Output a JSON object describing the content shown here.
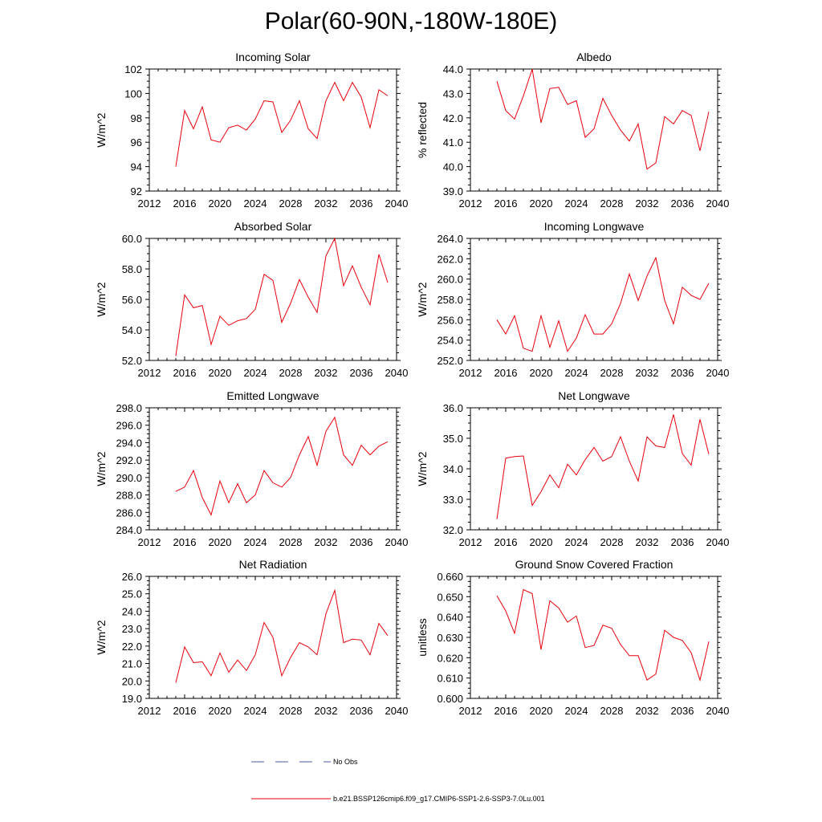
{
  "page_title": "Polar(60-90N,-180W-180E)",
  "legend": {
    "obs_label": "No Obs",
    "model_label": "b.e21.BSSP126cmip6.f09_g17.CMIP6-SSP1-2.6-SSP3-7.0Lu.001",
    "obs_color": "#4a5aa8",
    "model_color": "#e8000b"
  },
  "chart_data": [
    {
      "type": "line",
      "title": "Incoming Solar",
      "ylabel": "W/m^2",
      "xlim": [
        2012,
        2040
      ],
      "xticks": [
        "2012",
        "2016",
        "2020",
        "2024",
        "2028",
        "2032",
        "2036",
        "2040"
      ],
      "ylim": [
        92,
        102
      ],
      "yticks": [
        "92",
        "94",
        "96",
        "98",
        "100",
        "102"
      ],
      "x": [
        2015,
        2016,
        2017,
        2018,
        2019,
        2020,
        2021,
        2022,
        2023,
        2024,
        2025,
        2026,
        2027,
        2028,
        2029,
        2030,
        2031,
        2032,
        2033,
        2034,
        2035,
        2036,
        2037,
        2038,
        2039
      ],
      "series": [
        {
          "values": [
            94.0,
            98.6,
            97.1,
            98.9,
            96.2,
            96.0,
            97.2,
            97.4,
            97.0,
            97.9,
            99.4,
            99.3,
            96.8,
            97.8,
            99.4,
            97.1,
            96.3,
            99.4,
            100.9,
            99.4,
            100.9,
            99.7,
            97.2,
            100.3,
            99.8
          ]
        }
      ]
    },
    {
      "type": "line",
      "title": "Albedo",
      "ylabel": "% reflected",
      "xlim": [
        2012,
        2040
      ],
      "xticks": [
        "2012",
        "2016",
        "2020",
        "2024",
        "2028",
        "2032",
        "2036",
        "2040"
      ],
      "ylim": [
        39,
        44
      ],
      "yticks": [
        "39.0",
        "40.0",
        "41.0",
        "42.0",
        "43.0",
        "44.0"
      ],
      "x": [
        2015,
        2016,
        2017,
        2018,
        2019,
        2020,
        2021,
        2022,
        2023,
        2024,
        2025,
        2026,
        2027,
        2028,
        2029,
        2030,
        2031,
        2032,
        2033,
        2034,
        2035,
        2036,
        2037,
        2038,
        2039
      ],
      "series": [
        {
          "values": [
            43.5,
            42.3,
            41.95,
            42.9,
            44.0,
            41.8,
            43.2,
            43.25,
            42.55,
            42.7,
            41.2,
            41.55,
            42.8,
            42.1,
            41.5,
            41.05,
            41.75,
            39.9,
            40.15,
            42.05,
            41.75,
            42.3,
            42.1,
            40.65,
            42.25
          ]
        }
      ]
    },
    {
      "type": "line",
      "title": "Absorbed Solar",
      "ylabel": "W/m^2",
      "xlim": [
        2012,
        2040
      ],
      "xticks": [
        "2012",
        "2016",
        "2020",
        "2024",
        "2028",
        "2032",
        "2036",
        "2040"
      ],
      "ylim": [
        52,
        60
      ],
      "yticks": [
        "52.0",
        "54.0",
        "56.0",
        "58.0",
        "60.0"
      ],
      "x": [
        2015,
        2016,
        2017,
        2018,
        2019,
        2020,
        2021,
        2022,
        2023,
        2024,
        2025,
        2026,
        2027,
        2028,
        2029,
        2030,
        2031,
        2032,
        2033,
        2034,
        2035,
        2036,
        2037,
        2038,
        2039
      ],
      "series": [
        {
          "values": [
            52.3,
            56.3,
            55.45,
            55.6,
            53.05,
            54.9,
            54.3,
            54.6,
            54.75,
            55.35,
            57.65,
            57.25,
            54.5,
            55.75,
            57.3,
            56.15,
            55.15,
            58.85,
            60.0,
            56.9,
            58.2,
            56.8,
            55.65,
            58.95,
            57.1
          ]
        }
      ]
    },
    {
      "type": "line",
      "title": "Incoming Longwave",
      "ylabel": "W/m^2",
      "xlim": [
        2012,
        2040
      ],
      "xticks": [
        "2012",
        "2016",
        "2020",
        "2024",
        "2028",
        "2032",
        "2036",
        "2040"
      ],
      "ylim": [
        252,
        264
      ],
      "yticks": [
        "252.0",
        "254.0",
        "256.0",
        "258.0",
        "260.0",
        "262.0",
        "264.0"
      ],
      "x": [
        2015,
        2016,
        2017,
        2018,
        2019,
        2020,
        2021,
        2022,
        2023,
        2024,
        2025,
        2026,
        2027,
        2028,
        2029,
        2030,
        2031,
        2032,
        2033,
        2034,
        2035,
        2036,
        2037,
        2038,
        2039
      ],
      "series": [
        {
          "values": [
            256.0,
            254.6,
            256.4,
            253.2,
            252.9,
            256.4,
            253.3,
            255.9,
            252.9,
            254.2,
            256.5,
            254.6,
            254.6,
            255.6,
            257.6,
            260.5,
            257.9,
            260.3,
            262.1,
            257.9,
            255.6,
            259.2,
            258.4,
            258.0,
            259.6
          ]
        }
      ]
    },
    {
      "type": "line",
      "title": "Emitted Longwave",
      "ylabel": "W/m^2",
      "xlim": [
        2012,
        2040
      ],
      "xticks": [
        "2012",
        "2016",
        "2020",
        "2024",
        "2028",
        "2032",
        "2036",
        "2040"
      ],
      "ylim": [
        284,
        298
      ],
      "yticks": [
        "284.0",
        "286.0",
        "288.0",
        "290.0",
        "292.0",
        "294.0",
        "296.0",
        "298.0"
      ],
      "x": [
        2015,
        2016,
        2017,
        2018,
        2019,
        2020,
        2021,
        2022,
        2023,
        2024,
        2025,
        2026,
        2027,
        2028,
        2029,
        2030,
        2031,
        2032,
        2033,
        2034,
        2035,
        2036,
        2037,
        2038,
        2039
      ],
      "series": [
        {
          "values": [
            288.4,
            288.9,
            290.8,
            287.7,
            285.7,
            289.6,
            287.1,
            289.3,
            287.1,
            288.0,
            290.8,
            289.4,
            288.9,
            290.0,
            292.6,
            294.7,
            291.4,
            295.3,
            296.9,
            292.6,
            291.4,
            293.7,
            292.6,
            293.6,
            294.1
          ]
        }
      ]
    },
    {
      "type": "line",
      "title": "Net Longwave",
      "ylabel": "W/m^2",
      "xlim": [
        2012,
        2040
      ],
      "xticks": [
        "2012",
        "2016",
        "2020",
        "2024",
        "2028",
        "2032",
        "2036",
        "2040"
      ],
      "ylim": [
        32,
        36
      ],
      "yticks": [
        "32.0",
        "33.0",
        "34.0",
        "35.0",
        "36.0"
      ],
      "x": [
        2015,
        2016,
        2017,
        2018,
        2019,
        2020,
        2021,
        2022,
        2023,
        2024,
        2025,
        2026,
        2027,
        2028,
        2029,
        2030,
        2031,
        2032,
        2033,
        2034,
        2035,
        2036,
        2037,
        2038,
        2039
      ],
      "series": [
        {
          "values": [
            32.35,
            34.35,
            34.4,
            34.42,
            32.8,
            33.25,
            33.8,
            33.38,
            34.15,
            33.8,
            34.3,
            34.7,
            34.25,
            34.4,
            35.05,
            34.25,
            33.6,
            35.05,
            34.75,
            34.7,
            35.78,
            34.5,
            34.12,
            35.62,
            34.48
          ]
        }
      ]
    },
    {
      "type": "line",
      "title": "Net Radiation",
      "ylabel": "W/m^2",
      "xlim": [
        2012,
        2040
      ],
      "xticks": [
        "2012",
        "2016",
        "2020",
        "2024",
        "2028",
        "2032",
        "2036",
        "2040"
      ],
      "ylim": [
        19,
        26
      ],
      "yticks": [
        "19.0",
        "20.0",
        "21.0",
        "22.0",
        "23.0",
        "24.0",
        "25.0",
        "26.0"
      ],
      "x": [
        2015,
        2016,
        2017,
        2018,
        2019,
        2020,
        2021,
        2022,
        2023,
        2024,
        2025,
        2026,
        2027,
        2028,
        2029,
        2030,
        2031,
        2032,
        2033,
        2034,
        2035,
        2036,
        2037,
        2038,
        2039
      ],
      "series": [
        {
          "values": [
            19.9,
            21.95,
            21.05,
            21.1,
            20.3,
            21.6,
            20.5,
            21.2,
            20.6,
            21.5,
            23.35,
            22.5,
            20.3,
            21.35,
            22.2,
            21.95,
            21.5,
            23.85,
            25.2,
            22.2,
            22.4,
            22.35,
            21.5,
            23.3,
            22.6
          ]
        }
      ]
    },
    {
      "type": "line",
      "title": "Ground Snow Covered Fraction",
      "ylabel": "unitless",
      "xlim": [
        2012,
        2040
      ],
      "xticks": [
        "2012",
        "2016",
        "2020",
        "2024",
        "2028",
        "2032",
        "2036",
        "2040"
      ],
      "ylim": [
        0.6,
        0.66
      ],
      "yticks": [
        "0.600",
        "0.610",
        "0.620",
        "0.630",
        "0.640",
        "0.650",
        "0.660"
      ],
      "x": [
        2015,
        2016,
        2017,
        2018,
        2019,
        2020,
        2021,
        2022,
        2023,
        2024,
        2025,
        2026,
        2027,
        2028,
        2029,
        2030,
        2031,
        2032,
        2033,
        2034,
        2035,
        2036,
        2037,
        2038,
        2039
      ],
      "series": [
        {
          "values": [
            0.6505,
            0.643,
            0.632,
            0.6535,
            0.6515,
            0.624,
            0.648,
            0.6445,
            0.6375,
            0.6405,
            0.625,
            0.626,
            0.636,
            0.6345,
            0.6265,
            0.621,
            0.621,
            0.609,
            0.612,
            0.6335,
            0.63,
            0.6285,
            0.6225,
            0.609,
            0.628
          ]
        }
      ]
    }
  ]
}
